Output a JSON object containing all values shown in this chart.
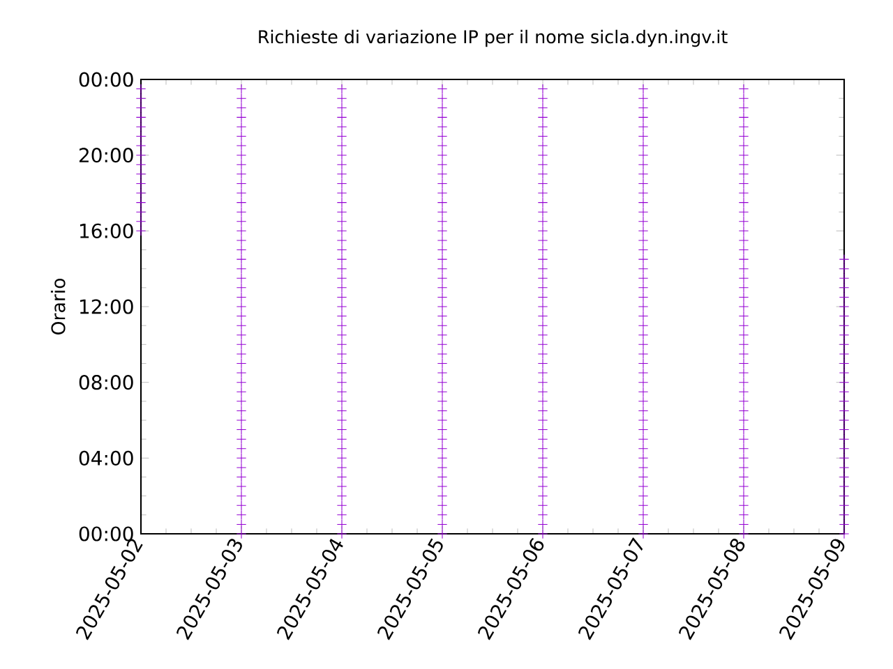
{
  "chart_data": {
    "type": "scatter",
    "title": "Richieste di variazione IP per il nome sicla.dyn.ingv.it",
    "ylabel": "Orario",
    "marker": "cross",
    "xlim": [
      "2025-05-02",
      "2025-05-09"
    ],
    "xticks": [
      "2025-05-02",
      "2025-05-03",
      "2025-05-04",
      "2025-05-05",
      "2025-05-06",
      "2025-05-07",
      "2025-05-08",
      "2025-05-09"
    ],
    "ylim": [
      0,
      24
    ],
    "yticks": [
      {
        "value": 0,
        "label": "00:00"
      },
      {
        "value": 4,
        "label": "04:00"
      },
      {
        "value": 8,
        "label": "08:00"
      },
      {
        "value": 12,
        "label": "12:00"
      },
      {
        "value": 16,
        "label": "16:00"
      },
      {
        "value": 20,
        "label": "20:00"
      },
      {
        "value": 24,
        "label": "00:00"
      }
    ],
    "series": [
      {
        "color": "#9400d3",
        "x": [
          "2025-05-02",
          "2025-05-02",
          "2025-05-02",
          "2025-05-02",
          "2025-05-02",
          "2025-05-02",
          "2025-05-02",
          "2025-05-02",
          "2025-05-02",
          "2025-05-02",
          "2025-05-02",
          "2025-05-02",
          "2025-05-02",
          "2025-05-02",
          "2025-05-02",
          "2025-05-02"
        ],
        "values": [
          16,
          16.5,
          17,
          17.5,
          18,
          18.5,
          19,
          19.5,
          20,
          20.5,
          21,
          21.5,
          22,
          22.5,
          23,
          23.5
        ]
      },
      {
        "color": "#9400d3",
        "x": [
          "2025-05-03",
          "2025-05-03",
          "2025-05-03",
          "2025-05-03",
          "2025-05-03",
          "2025-05-03",
          "2025-05-03",
          "2025-05-03",
          "2025-05-03",
          "2025-05-03",
          "2025-05-03",
          "2025-05-03",
          "2025-05-03",
          "2025-05-03",
          "2025-05-03",
          "2025-05-03",
          "2025-05-03",
          "2025-05-03",
          "2025-05-03",
          "2025-05-03",
          "2025-05-03",
          "2025-05-03",
          "2025-05-03",
          "2025-05-03",
          "2025-05-03",
          "2025-05-03",
          "2025-05-03",
          "2025-05-03",
          "2025-05-03",
          "2025-05-03",
          "2025-05-03",
          "2025-05-03",
          "2025-05-03",
          "2025-05-03",
          "2025-05-03",
          "2025-05-03",
          "2025-05-03",
          "2025-05-03",
          "2025-05-03",
          "2025-05-03",
          "2025-05-03",
          "2025-05-03",
          "2025-05-03",
          "2025-05-03",
          "2025-05-03",
          "2025-05-03",
          "2025-05-03",
          "2025-05-03"
        ],
        "values": [
          0,
          0.5,
          1,
          1.5,
          2,
          2.5,
          3,
          3.5,
          4,
          4.5,
          5,
          5.5,
          6,
          6.5,
          7,
          7.5,
          8,
          8.5,
          9,
          9.5,
          10,
          10.5,
          11,
          11.5,
          12,
          12.5,
          13,
          13.5,
          14,
          14.5,
          15,
          15.5,
          16,
          16.5,
          17,
          17.5,
          18,
          18.5,
          19,
          19.5,
          20,
          20.5,
          21,
          21.5,
          22,
          22.5,
          23,
          23.5
        ]
      },
      {
        "color": "#9400d3",
        "x": [
          "2025-05-04",
          "2025-05-04",
          "2025-05-04",
          "2025-05-04",
          "2025-05-04",
          "2025-05-04",
          "2025-05-04",
          "2025-05-04",
          "2025-05-04",
          "2025-05-04",
          "2025-05-04",
          "2025-05-04",
          "2025-05-04",
          "2025-05-04",
          "2025-05-04",
          "2025-05-04",
          "2025-05-04",
          "2025-05-04",
          "2025-05-04",
          "2025-05-04",
          "2025-05-04",
          "2025-05-04",
          "2025-05-04",
          "2025-05-04",
          "2025-05-04",
          "2025-05-04",
          "2025-05-04",
          "2025-05-04",
          "2025-05-04",
          "2025-05-04",
          "2025-05-04",
          "2025-05-04",
          "2025-05-04",
          "2025-05-04",
          "2025-05-04",
          "2025-05-04",
          "2025-05-04",
          "2025-05-04",
          "2025-05-04",
          "2025-05-04",
          "2025-05-04",
          "2025-05-04",
          "2025-05-04",
          "2025-05-04",
          "2025-05-04",
          "2025-05-04",
          "2025-05-04",
          "2025-05-04"
        ],
        "values": [
          0,
          0.5,
          1,
          1.5,
          2,
          2.5,
          3,
          3.5,
          4,
          4.5,
          5,
          5.5,
          6,
          6.5,
          7,
          7.5,
          8,
          8.5,
          9,
          9.5,
          10,
          10.5,
          11,
          11.5,
          12,
          12.5,
          13,
          13.5,
          14,
          14.5,
          15,
          15.5,
          16,
          16.5,
          17,
          17.5,
          18,
          18.5,
          19,
          19.5,
          20,
          20.5,
          21,
          21.5,
          22,
          22.5,
          23,
          23.5
        ]
      },
      {
        "color": "#9400d3",
        "x": [
          "2025-05-05",
          "2025-05-05",
          "2025-05-05",
          "2025-05-05",
          "2025-05-05",
          "2025-05-05",
          "2025-05-05",
          "2025-05-05",
          "2025-05-05",
          "2025-05-05",
          "2025-05-05",
          "2025-05-05",
          "2025-05-05",
          "2025-05-05",
          "2025-05-05",
          "2025-05-05",
          "2025-05-05",
          "2025-05-05",
          "2025-05-05",
          "2025-05-05",
          "2025-05-05",
          "2025-05-05",
          "2025-05-05",
          "2025-05-05",
          "2025-05-05",
          "2025-05-05",
          "2025-05-05",
          "2025-05-05",
          "2025-05-05",
          "2025-05-05",
          "2025-05-05",
          "2025-05-05",
          "2025-05-05",
          "2025-05-05",
          "2025-05-05",
          "2025-05-05",
          "2025-05-05",
          "2025-05-05",
          "2025-05-05",
          "2025-05-05",
          "2025-05-05",
          "2025-05-05",
          "2025-05-05",
          "2025-05-05",
          "2025-05-05",
          "2025-05-05",
          "2025-05-05",
          "2025-05-05"
        ],
        "values": [
          0,
          0.5,
          1,
          1.5,
          2,
          2.5,
          3,
          3.5,
          4,
          4.5,
          5,
          5.5,
          6,
          6.5,
          7,
          7.5,
          8,
          8.5,
          9,
          9.5,
          10,
          10.5,
          11,
          11.5,
          12,
          12.5,
          13,
          13.5,
          14,
          14.5,
          15,
          15.5,
          16,
          16.5,
          17,
          17.5,
          18,
          18.5,
          19,
          19.5,
          20,
          20.5,
          21,
          21.5,
          22,
          22.5,
          23,
          23.5
        ]
      },
      {
        "color": "#9400d3",
        "x": [
          "2025-05-06",
          "2025-05-06",
          "2025-05-06",
          "2025-05-06",
          "2025-05-06",
          "2025-05-06",
          "2025-05-06",
          "2025-05-06",
          "2025-05-06",
          "2025-05-06",
          "2025-05-06",
          "2025-05-06",
          "2025-05-06",
          "2025-05-06",
          "2025-05-06",
          "2025-05-06",
          "2025-05-06",
          "2025-05-06",
          "2025-05-06",
          "2025-05-06",
          "2025-05-06",
          "2025-05-06",
          "2025-05-06",
          "2025-05-06",
          "2025-05-06",
          "2025-05-06",
          "2025-05-06",
          "2025-05-06",
          "2025-05-06",
          "2025-05-06",
          "2025-05-06",
          "2025-05-06",
          "2025-05-06",
          "2025-05-06",
          "2025-05-06",
          "2025-05-06",
          "2025-05-06",
          "2025-05-06",
          "2025-05-06",
          "2025-05-06",
          "2025-05-06",
          "2025-05-06",
          "2025-05-06",
          "2025-05-06",
          "2025-05-06",
          "2025-05-06",
          "2025-05-06",
          "2025-05-06"
        ],
        "values": [
          0,
          0.5,
          1,
          1.5,
          2,
          2.5,
          3,
          3.5,
          4,
          4.5,
          5,
          5.5,
          6,
          6.5,
          7,
          7.5,
          8,
          8.5,
          9,
          9.5,
          10,
          10.5,
          11,
          11.5,
          12,
          12.5,
          13,
          13.5,
          14,
          14.5,
          15,
          15.5,
          16,
          16.5,
          17,
          17.5,
          18,
          18.5,
          19,
          19.5,
          20,
          20.5,
          21,
          21.5,
          22,
          22.5,
          23,
          23.5
        ]
      },
      {
        "color": "#9400d3",
        "x": [
          "2025-05-07",
          "2025-05-07",
          "2025-05-07",
          "2025-05-07",
          "2025-05-07",
          "2025-05-07",
          "2025-05-07",
          "2025-05-07",
          "2025-05-07",
          "2025-05-07",
          "2025-05-07",
          "2025-05-07",
          "2025-05-07",
          "2025-05-07",
          "2025-05-07",
          "2025-05-07",
          "2025-05-07",
          "2025-05-07",
          "2025-05-07",
          "2025-05-07",
          "2025-05-07",
          "2025-05-07",
          "2025-05-07",
          "2025-05-07",
          "2025-05-07",
          "2025-05-07",
          "2025-05-07",
          "2025-05-07",
          "2025-05-07",
          "2025-05-07",
          "2025-05-07",
          "2025-05-07",
          "2025-05-07",
          "2025-05-07",
          "2025-05-07",
          "2025-05-07",
          "2025-05-07",
          "2025-05-07",
          "2025-05-07",
          "2025-05-07",
          "2025-05-07",
          "2025-05-07",
          "2025-05-07",
          "2025-05-07",
          "2025-05-07",
          "2025-05-07",
          "2025-05-07",
          "2025-05-07"
        ],
        "values": [
          0,
          0.5,
          1,
          1.5,
          2,
          2.5,
          3,
          3.5,
          4,
          4.5,
          5,
          5.5,
          6,
          6.5,
          7,
          7.5,
          8,
          8.5,
          9,
          9.5,
          10,
          10.5,
          11,
          11.5,
          12,
          12.5,
          13,
          13.5,
          14,
          14.5,
          15,
          15.5,
          16,
          16.5,
          17,
          17.5,
          18,
          18.5,
          19,
          19.5,
          20,
          20.5,
          21,
          21.5,
          22,
          22.5,
          23,
          23.5
        ]
      },
      {
        "color": "#9400d3",
        "x": [
          "2025-05-08",
          "2025-05-08",
          "2025-05-08",
          "2025-05-08",
          "2025-05-08",
          "2025-05-08",
          "2025-05-08",
          "2025-05-08",
          "2025-05-08",
          "2025-05-08",
          "2025-05-08",
          "2025-05-08",
          "2025-05-08",
          "2025-05-08",
          "2025-05-08",
          "2025-05-08",
          "2025-05-08",
          "2025-05-08",
          "2025-05-08",
          "2025-05-08",
          "2025-05-08",
          "2025-05-08",
          "2025-05-08",
          "2025-05-08",
          "2025-05-08",
          "2025-05-08",
          "2025-05-08",
          "2025-05-08",
          "2025-05-08",
          "2025-05-08",
          "2025-05-08",
          "2025-05-08",
          "2025-05-08",
          "2025-05-08",
          "2025-05-08",
          "2025-05-08",
          "2025-05-08",
          "2025-05-08",
          "2025-05-08",
          "2025-05-08",
          "2025-05-08",
          "2025-05-08",
          "2025-05-08",
          "2025-05-08",
          "2025-05-08",
          "2025-05-08",
          "2025-05-08",
          "2025-05-08"
        ],
        "values": [
          0,
          0.5,
          1,
          1.5,
          2,
          2.5,
          3,
          3.5,
          4,
          4.5,
          5,
          5.5,
          6,
          6.5,
          7,
          7.5,
          8,
          8.5,
          9,
          9.5,
          10,
          10.5,
          11,
          11.5,
          12,
          12.5,
          13,
          13.5,
          14,
          14.5,
          15,
          15.5,
          16,
          16.5,
          17,
          17.5,
          18,
          18.5,
          19,
          19.5,
          20,
          20.5,
          21,
          21.5,
          22,
          22.5,
          23,
          23.5
        ]
      },
      {
        "color": "#9400d3",
        "x": [
          "2025-05-09",
          "2025-05-09",
          "2025-05-09",
          "2025-05-09",
          "2025-05-09",
          "2025-05-09",
          "2025-05-09",
          "2025-05-09",
          "2025-05-09",
          "2025-05-09",
          "2025-05-09",
          "2025-05-09",
          "2025-05-09",
          "2025-05-09",
          "2025-05-09",
          "2025-05-09",
          "2025-05-09",
          "2025-05-09",
          "2025-05-09",
          "2025-05-09",
          "2025-05-09",
          "2025-05-09",
          "2025-05-09",
          "2025-05-09",
          "2025-05-09",
          "2025-05-09",
          "2025-05-09",
          "2025-05-09",
          "2025-05-09",
          "2025-05-09"
        ],
        "values": [
          0,
          0.5,
          1,
          1.5,
          2,
          2.5,
          3,
          3.5,
          4,
          4.5,
          5,
          5.5,
          6,
          6.5,
          7,
          7.5,
          8,
          8.5,
          9,
          9.5,
          10,
          10.5,
          11,
          11.5,
          12,
          12.5,
          13,
          13.5,
          14,
          14.5
        ]
      }
    ]
  }
}
